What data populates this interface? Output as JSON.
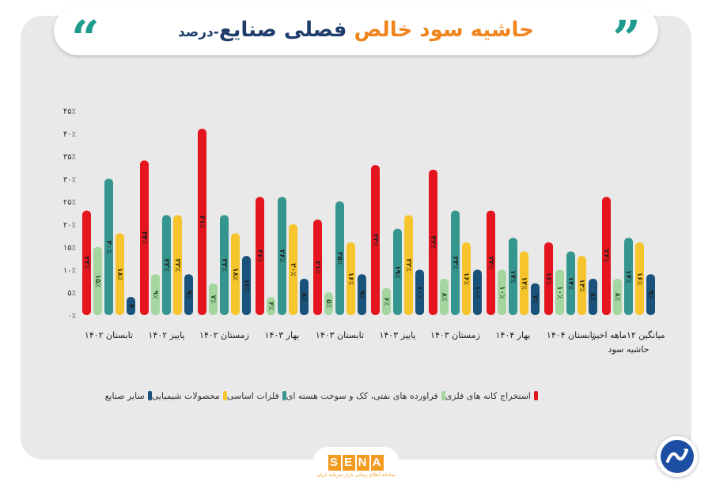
{
  "header": {
    "title_part1": "حاشیه سود خالص",
    "title_part2": "فصلی صنایع",
    "title_part3": "-درصد",
    "quote_open": "“",
    "quote_close": "”"
  },
  "logo": {
    "letters": [
      "S",
      "E",
      "N",
      "A"
    ],
    "subtitle": "سامانه اطلاع رسانی بازار سرمایه ایران"
  },
  "chart_data": {
    "type": "bar",
    "ylim": [
      0,
      45
    ],
    "yticks": [
      "۴۵٪",
      "۴۰٪",
      "۳۵٪",
      "۳۰٪",
      "۲۵٪",
      "۲۰٪",
      "۱۵٪",
      "۱۰٪",
      "۵٪",
      "۰٪"
    ],
    "categories": [
      [
        "تابستان ۱۴۰۲"
      ],
      [
        "پاییز ۱۴۰۲"
      ],
      [
        "زمستان ۱۴۰۲"
      ],
      [
        "بهار ۱۴۰۳"
      ],
      [
        "تابستان ۱۴۰۳"
      ],
      [
        "پاییز ۱۴۰۳"
      ],
      [
        "زمستان ۱۴۰۳"
      ],
      [
        "بهار ۱۴۰۴"
      ],
      [
        "تابستان ۱۴۰۴"
      ],
      [
        "میانگین ۱۲ماهه اخیر",
        "حاشیه سود"
      ]
    ],
    "series": [
      {
        "name": "استخراج کانه های فلزی",
        "color": "#e4151f",
        "values": [
          23,
          34,
          41,
          26,
          21,
          33,
          32,
          23,
          16,
          26
        ],
        "labels": [
          "۲۳٪",
          "۳۴٪",
          "۴۱٪",
          "۲۶٪",
          "۲۱٪",
          "۳۳٪",
          "۳۲٪",
          "۲۳٪",
          "۱۶٪",
          "۲۶٪"
        ]
      },
      {
        "name": "فراورده های نفتی، کک و سوخت هسته ای",
        "color": "#a5d6a0",
        "values": [
          15,
          9,
          7,
          4,
          5,
          6,
          8,
          10,
          10,
          8
        ],
        "labels": [
          "۱۵٪",
          "۹٪",
          "۷٪",
          "۴٪",
          "۵٪",
          "۶٪",
          "۸٪",
          "۱۰٪",
          "۱۰٪",
          "۸٪"
        ]
      },
      {
        "name": "فلزات اساسی",
        "color": "#35958f",
        "values": [
          30,
          22,
          22,
          26,
          25,
          19,
          23,
          17,
          14,
          17
        ],
        "labels": [
          "۳۰٪",
          "۲۲٪",
          "۲۲٪",
          "۲۶٪",
          "۲۵٪",
          "۱۹٪",
          "۲۳٪",
          "۱۷٪",
          "۱۴٪",
          "۱۷٪"
        ]
      },
      {
        "name": "محصولات شیمیایی",
        "color": "#f6c52d",
        "values": [
          18,
          22,
          18,
          20,
          16,
          22,
          16,
          14,
          13,
          16
        ],
        "labels": [
          "۱۸٪",
          "۲۲٪",
          "۱۸٪",
          "۲۰٪",
          "۱۶٪",
          "۲۲٪",
          "۱۶٪",
          "۱۴٪",
          "۱۳٪",
          "۱۶٪"
        ]
      },
      {
        "name": "سایر صنایع",
        "color": "#19527a",
        "values": [
          4,
          9,
          13,
          8,
          9,
          10,
          10,
          7,
          8,
          9
        ],
        "labels": [
          "۴",
          "۹٪",
          "۱۳٪",
          "۸٪",
          "۹٪",
          "۱۰٪",
          "۱۰٪",
          "۷٪",
          "۸٪",
          "۹٪"
        ]
      }
    ],
    "legend_position": "bottom",
    "grid": false
  }
}
